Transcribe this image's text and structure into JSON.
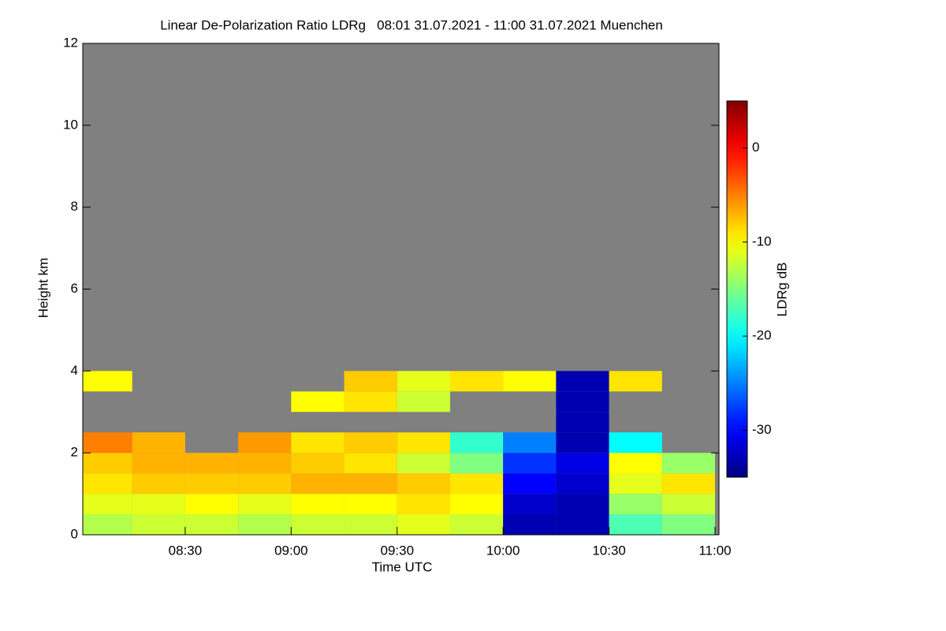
{
  "chart_data": {
    "type": "heatmap",
    "title": "Linear De-Polarization Ratio LDRg   08:01 31.07.2021 - 11:00 31.07.2021 Muenchen",
    "x_label": "Time UTC",
    "y_label": "Height km",
    "colorbar_label": "LDRg dB",
    "x_edges": [
      "2021-07-31T08:01",
      "2021-07-31T08:15",
      "2021-07-31T08:30",
      "2021-07-31T08:45",
      "2021-07-31T09:00",
      "2021-07-31T09:15",
      "2021-07-31T09:30",
      "2021-07-31T09:45",
      "2021-07-31T10:00",
      "2021-07-31T10:15",
      "2021-07-31T10:30",
      "2021-07-31T10:45",
      "2021-07-31T11:00"
    ],
    "y_edges": [
      0,
      0.5,
      1,
      1.5,
      2,
      2.5,
      3,
      3.5,
      4
    ],
    "z": [
      [
        -13,
        -12,
        -12,
        -13,
        -12,
        -12,
        -11,
        -12,
        -33,
        -33,
        -17,
        -15
      ],
      [
        -11,
        -11,
        -10,
        -11,
        -10,
        -10,
        -9,
        -10,
        -32,
        -33,
        -14,
        -12
      ],
      [
        -9,
        -8,
        -8,
        -8,
        -7,
        -7,
        -8,
        -9,
        -30,
        -32,
        -11,
        -9
      ],
      [
        -8,
        -7,
        -7,
        -7,
        -8,
        -9,
        -12,
        -15,
        -28,
        -31,
        -10,
        -14
      ],
      [
        -5,
        -7,
        null,
        -6,
        -9,
        -8,
        -9,
        -18,
        -25,
        -33,
        -20,
        null
      ],
      [
        null,
        null,
        null,
        null,
        null,
        null,
        null,
        null,
        null,
        -33,
        null,
        null
      ],
      [
        null,
        null,
        null,
        null,
        -10,
        -9,
        -12,
        null,
        null,
        -33,
        null,
        null
      ],
      [
        -10,
        null,
        null,
        null,
        null,
        -8,
        -11,
        -9,
        -10,
        -33,
        -9,
        null
      ]
    ],
    "colormap": "jet",
    "no_data_color": "#808080",
    "xlim": [
      "2021-07-31T08:01",
      "2021-07-31T11:00"
    ],
    "xticks": [
      {
        "value": "2021-07-31T08:30",
        "label": "08:30"
      },
      {
        "value": "2021-07-31T09:00",
        "label": "09:00"
      },
      {
        "value": "2021-07-31T09:30",
        "label": "09:30"
      },
      {
        "value": "2021-07-31T10:00",
        "label": "10:00"
      },
      {
        "value": "2021-07-31T10:30",
        "label": "10:30"
      },
      {
        "value": "2021-07-31T11:00",
        "label": "11:00"
      }
    ],
    "ylim": [
      0,
      12
    ],
    "yticks": [
      0,
      2,
      4,
      6,
      8,
      10,
      12
    ],
    "zlim": [
      -35,
      5
    ],
    "zticks": [
      0,
      -10,
      -20,
      -30
    ]
  }
}
